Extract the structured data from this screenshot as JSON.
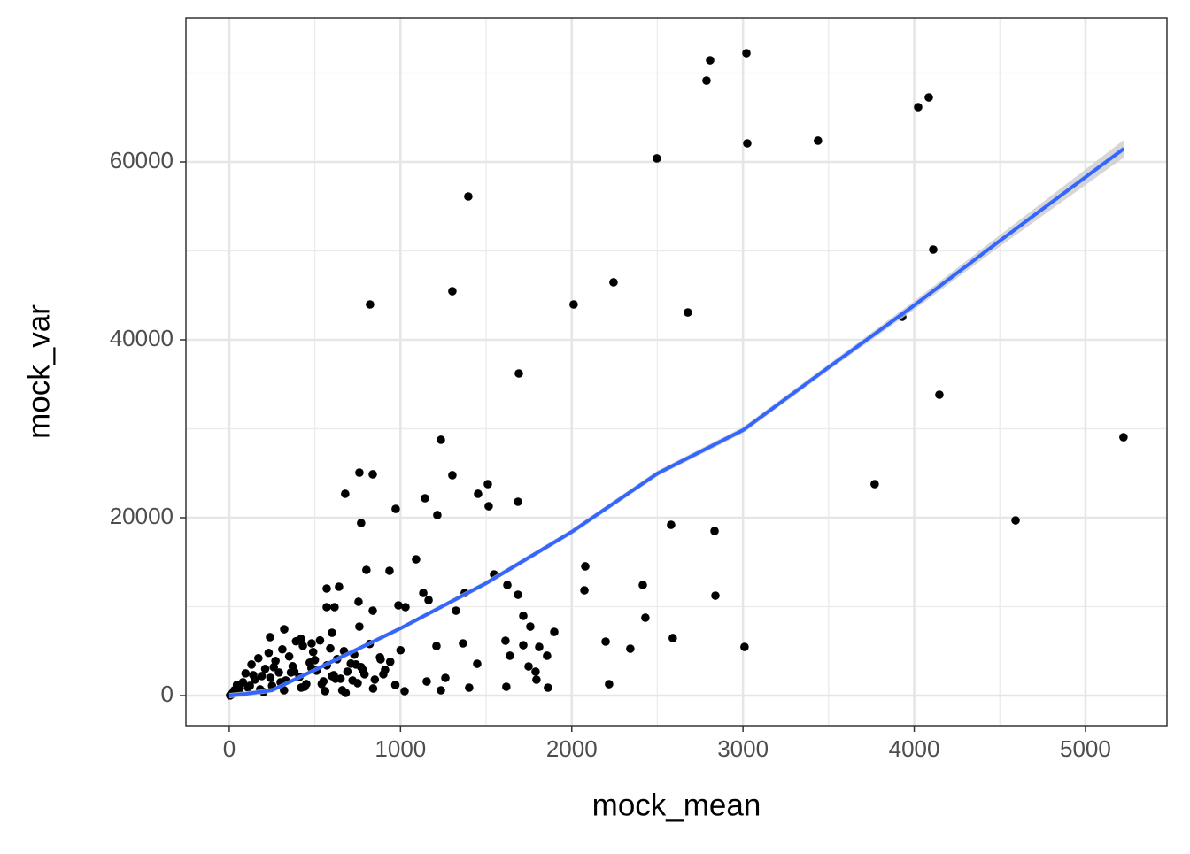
{
  "chart_data": {
    "type": "scatter",
    "x_label": "mock_mean",
    "y_label": "mock_var",
    "xlim": [
      -253,
      5476
    ],
    "ylim": [
      -3383,
      76219
    ],
    "xticks": [
      0,
      1000,
      2000,
      3000,
      4000,
      5000
    ],
    "yticks": [
      0,
      20000,
      40000,
      60000
    ],
    "minor_xticks": [
      500,
      1500,
      2500,
      3500,
      4500
    ],
    "minor_yticks": [
      10000,
      30000,
      50000,
      70000
    ],
    "grid": true,
    "point_color": "#000000",
    "x": [
      3020,
      2808,
      2787,
      4085,
      4023,
      3438,
      3025,
      2497,
      1396,
      4111,
      2244,
      1303,
      822,
      2011,
      2678,
      3930,
      1691,
      4147,
      5222,
      1236,
      1303,
      760,
      838,
      3769,
      1510,
      1453,
      677,
      1143,
      1686,
      1515,
      972,
      1215,
      770,
      4592,
      2580,
      2834,
      1091,
      801,
      936,
      2079,
      1546,
      1624,
      2415,
      641,
      569,
      2074,
      1375,
      1133,
      1686,
      2839,
      1164,
      755,
      988,
      569,
      615,
      1029,
      838,
      1324,
      1717,
      2430,
      1758,
      1898,
      321,
      760,
      600,
      2590,
      238,
      1613,
      2198,
      1365,
      419,
      1717,
      481,
      2342,
      3009,
      1210,
      1810,
      1639,
      1856,
      884,
      1448,
      1748,
      1789,
      1262,
      1794,
      1618,
      1861,
      1401,
      2218,
      1236,
      1024,
      1153,
      5,
      12,
      20,
      30,
      45,
      60,
      80,
      95,
      110,
      130,
      150,
      170,
      190,
      210,
      230,
      250,
      270,
      290,
      310,
      330,
      350,
      370,
      390,
      410,
      430,
      450,
      470,
      490,
      510,
      530,
      550,
      570,
      590,
      610,
      630,
      650,
      670,
      690,
      710,
      730,
      750,
      770,
      790,
      820,
      850,
      880,
      910,
      940,
      970,
      1000,
      60,
      120,
      180,
      240,
      300,
      360,
      420,
      480,
      540,
      600,
      660,
      720,
      780,
      840,
      900,
      140,
      200,
      260,
      320,
      380,
      440,
      500,
      560,
      620,
      680,
      740
    ],
    "y": [
      72240,
      71440,
      69150,
      67260,
      66170,
      62390,
      62090,
      60400,
      56120,
      50150,
      46470,
      45470,
      43980,
      43980,
      43080,
      42590,
      36220,
      33830,
      29050,
      28760,
      24780,
      25070,
      24880,
      23780,
      23780,
      22690,
      22690,
      22190,
      21790,
      21290,
      20990,
      20300,
      19400,
      19700,
      19200,
      18510,
      15320,
      14130,
      14030,
      14530,
      13630,
      12440,
      12440,
      12240,
      12040,
      11840,
      11540,
      11540,
      11340,
      11240,
      10740,
      10550,
      10150,
      9950,
      9950,
      9950,
      9550,
      9550,
      8960,
      8760,
      7760,
      7160,
      7460,
      7760,
      7060,
      6470,
      6570,
      6170,
      6070,
      5870,
      6370,
      5670,
      5870,
      5270,
      5470,
      5570,
      5470,
      4480,
      4480,
      4080,
      3580,
      3280,
      2690,
      1990,
      1790,
      995,
      895,
      895,
      1290,
      597,
      497,
      1590,
      20,
      100,
      300,
      600,
      1200,
      800,
      1500,
      2500,
      900,
      3500,
      1800,
      4200,
      2200,
      3000,
      4800,
      1100,
      3900,
      2600,
      5200,
      1700,
      4400,
      3300,
      6100,
      2100,
      5600,
      1300,
      3700,
      4900,
      2800,
      6200,
      1600,
      3400,
      5300,
      2300,
      4100,
      1900,
      5000,
      2700,
      3600,
      4600,
      1400,
      3200,
      2400,
      5800,
      1800,
      4300,
      2900,
      3800,
      1200,
      5100,
      400,
      1100,
      700,
      2000,
      1500,
      2600,
      900,
      3100,
      1300,
      2200,
      600,
      1700,
      2900,
      800,
      2400,
      2300,
      400,
      3200,
      600,
      2700,
      1000,
      4000,
      500,
      1900,
      300,
      3500
    ],
    "fit": {
      "color": "#3366ff",
      "band_color": "#cccccc",
      "x": [
        0,
        100,
        250,
        500,
        1000,
        1500,
        2000,
        2500,
        3000,
        3500,
        4000,
        4500,
        5224
      ],
      "y": [
        0,
        200,
        600,
        2890,
        7560,
        12640,
        18410,
        24970,
        29850,
        36910,
        43880,
        51140,
        61490
      ],
      "lower": [
        -300,
        -100,
        350,
        2650,
        7300,
        12350,
        18100,
        24650,
        29500,
        36550,
        43400,
        50500,
        60500
      ],
      "upper": [
        300,
        500,
        850,
        3130,
        7820,
        12930,
        18720,
        25290,
        30200,
        37270,
        44360,
        51780,
        62480
      ]
    }
  }
}
